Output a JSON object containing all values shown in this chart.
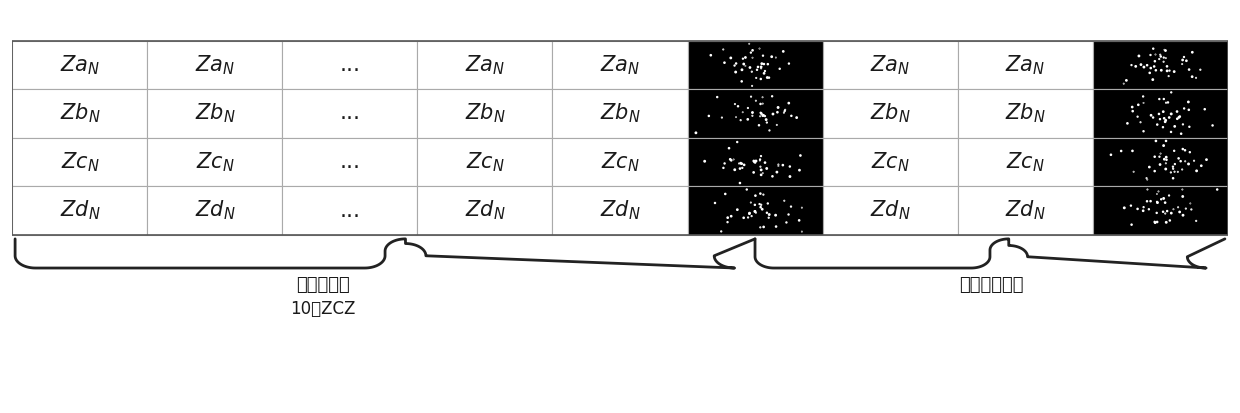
{
  "row_labels": [
    "Za",
    "Zb",
    "Zc",
    "Zd"
  ],
  "n_cols": 9,
  "black_cols": [
    5,
    8
  ],
  "ellipsis_col": 2,
  "label_left": "短训练字段",
  "label_left_sub": "10个ZCZ",
  "label_right": "信道估计字段",
  "table_bg": "#ffffff",
  "black_bg": "#000000",
  "text_color": "#1a1a1a",
  "grid_color": "#aaaaaa",
  "fontsize_cell": 15,
  "fontsize_label": 13,
  "fontsize_sublabel": 12
}
